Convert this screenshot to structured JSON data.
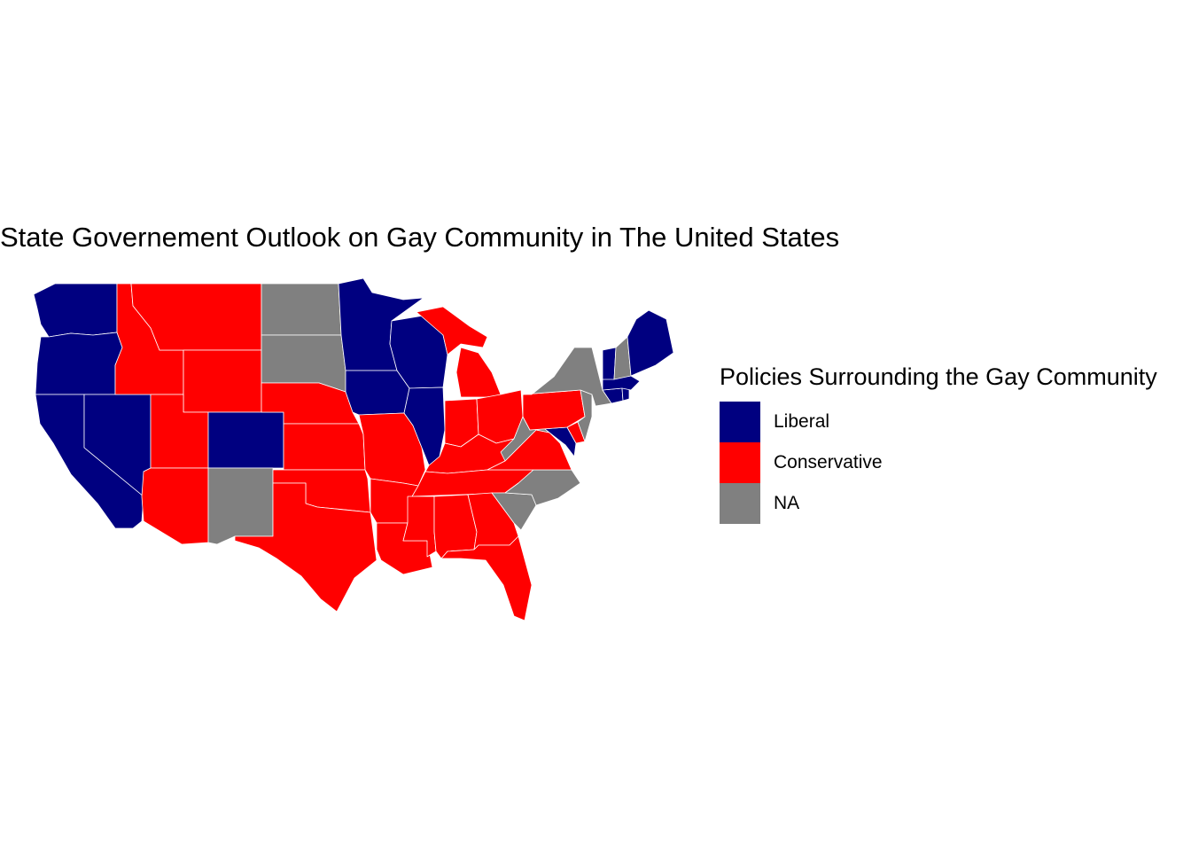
{
  "title": "State Governement Outlook on Gay Community in The United States",
  "legend": {
    "title": "Policies Surrounding the Gay Community",
    "items": [
      {
        "key": "liberal",
        "label": "Liberal",
        "color": "#000080"
      },
      {
        "key": "conservative",
        "label": "Conservative",
        "color": "#ff0000"
      },
      {
        "key": "na",
        "label": "NA",
        "color": "#808080"
      }
    ]
  },
  "states": [
    {
      "name": "Washington",
      "category": "liberal"
    },
    {
      "name": "Oregon",
      "category": "liberal"
    },
    {
      "name": "California",
      "category": "liberal"
    },
    {
      "name": "Nevada",
      "category": "liberal"
    },
    {
      "name": "Idaho",
      "category": "conservative"
    },
    {
      "name": "Montana",
      "category": "conservative"
    },
    {
      "name": "Wyoming",
      "category": "conservative"
    },
    {
      "name": "Utah",
      "category": "conservative"
    },
    {
      "name": "Arizona",
      "category": "conservative"
    },
    {
      "name": "Colorado",
      "category": "liberal"
    },
    {
      "name": "New Mexico",
      "category": "na"
    },
    {
      "name": "North Dakota",
      "category": "na"
    },
    {
      "name": "South Dakota",
      "category": "na"
    },
    {
      "name": "Nebraska",
      "category": "conservative"
    },
    {
      "name": "Kansas",
      "category": "conservative"
    },
    {
      "name": "Oklahoma",
      "category": "conservative"
    },
    {
      "name": "Texas",
      "category": "conservative"
    },
    {
      "name": "Minnesota",
      "category": "liberal"
    },
    {
      "name": "Iowa",
      "category": "liberal"
    },
    {
      "name": "Missouri",
      "category": "conservative"
    },
    {
      "name": "Arkansas",
      "category": "conservative"
    },
    {
      "name": "Louisiana",
      "category": "conservative"
    },
    {
      "name": "Wisconsin",
      "category": "liberal"
    },
    {
      "name": "Illinois",
      "category": "liberal"
    },
    {
      "name": "Michigan",
      "category": "conservative"
    },
    {
      "name": "Indiana",
      "category": "conservative"
    },
    {
      "name": "Ohio",
      "category": "conservative"
    },
    {
      "name": "Kentucky",
      "category": "conservative"
    },
    {
      "name": "Tennessee",
      "category": "conservative"
    },
    {
      "name": "Mississippi",
      "category": "conservative"
    },
    {
      "name": "Alabama",
      "category": "conservative"
    },
    {
      "name": "Georgia",
      "category": "conservative"
    },
    {
      "name": "Florida",
      "category": "conservative"
    },
    {
      "name": "South Carolina",
      "category": "na"
    },
    {
      "name": "North Carolina",
      "category": "na"
    },
    {
      "name": "Virginia",
      "category": "conservative"
    },
    {
      "name": "West Virginia",
      "category": "na"
    },
    {
      "name": "Maryland",
      "category": "liberal"
    },
    {
      "name": "Delaware",
      "category": "conservative"
    },
    {
      "name": "Pennsylvania",
      "category": "conservative"
    },
    {
      "name": "New Jersey",
      "category": "na"
    },
    {
      "name": "New York",
      "category": "na"
    },
    {
      "name": "Connecticut",
      "category": "liberal"
    },
    {
      "name": "Rhode Island",
      "category": "liberal"
    },
    {
      "name": "Massachusetts",
      "category": "liberal"
    },
    {
      "name": "Vermont",
      "category": "liberal"
    },
    {
      "name": "New Hampshire",
      "category": "na"
    },
    {
      "name": "Maine",
      "category": "liberal"
    }
  ]
}
